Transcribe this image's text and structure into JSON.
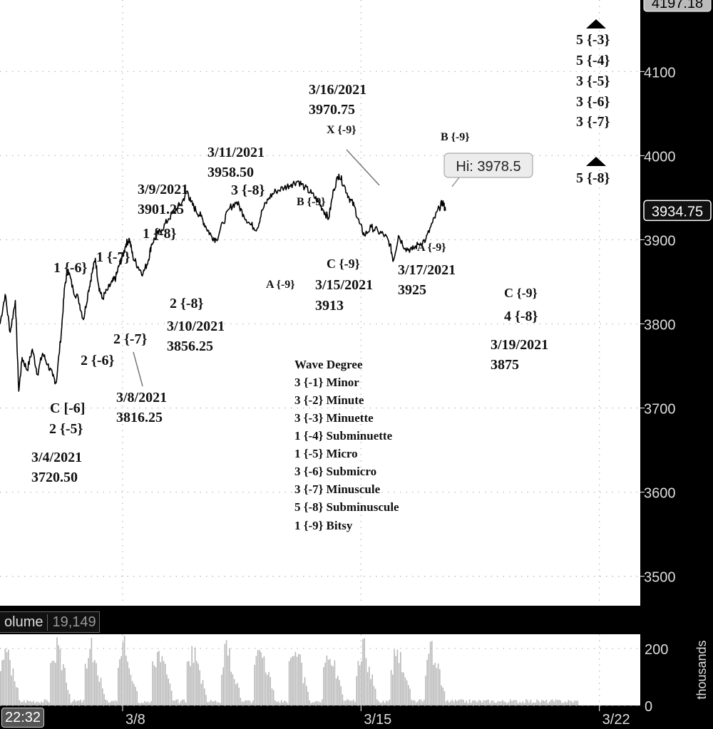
{
  "chart_data": {
    "type": "line",
    "price_axis": {
      "ylim": [
        3465,
        4185
      ],
      "ticks": [
        3500,
        3600,
        3700,
        3800,
        3900,
        4000,
        4100
      ],
      "top_label": "4197.18"
    },
    "last_price": 3934.75,
    "high_bubble": {
      "label": "Hi: 3978.5",
      "x": 16.7,
      "y": 3978.5
    },
    "time_axis": {
      "xlim": [
        4.4,
        23.2
      ],
      "ticks": [
        {
          "x": 8,
          "label": "3/8"
        },
        {
          "x": 15,
          "label": "3/15"
        },
        {
          "x": 22,
          "label": "3/22"
        }
      ]
    },
    "series": [
      {
        "values": [
          [
            4.4,
            3800
          ],
          [
            4.55,
            3835
          ],
          [
            4.7,
            3790
          ],
          [
            4.85,
            3828
          ],
          [
            4.95,
            3720
          ],
          [
            5.05,
            3760
          ],
          [
            5.2,
            3745
          ],
          [
            5.35,
            3770
          ],
          [
            5.5,
            3740
          ],
          [
            5.65,
            3765
          ],
          [
            5.8,
            3752
          ],
          [
            5.95,
            3738
          ],
          [
            6.05,
            3730
          ],
          [
            6.2,
            3790
          ],
          [
            6.3,
            3845
          ],
          [
            6.4,
            3865
          ],
          [
            6.55,
            3840
          ],
          [
            6.7,
            3830
          ],
          [
            6.85,
            3805
          ],
          [
            7.0,
            3840
          ],
          [
            7.1,
            3860
          ],
          [
            7.2,
            3878
          ],
          [
            7.3,
            3845
          ],
          [
            7.4,
            3830
          ],
          [
            7.55,
            3840
          ],
          [
            7.7,
            3850
          ],
          [
            7.8,
            3855
          ],
          [
            7.9,
            3870
          ],
          [
            8.0,
            3880
          ],
          [
            8.1,
            3895
          ],
          [
            8.2,
            3901
          ],
          [
            8.3,
            3880
          ],
          [
            8.45,
            3868
          ],
          [
            8.6,
            3860
          ],
          [
            8.75,
            3875
          ],
          [
            8.85,
            3895
          ],
          [
            9.0,
            3905
          ],
          [
            9.15,
            3912
          ],
          [
            9.35,
            3925
          ],
          [
            9.55,
            3935
          ],
          [
            9.75,
            3945
          ],
          [
            9.9,
            3958
          ],
          [
            10.0,
            3945
          ],
          [
            10.15,
            3935
          ],
          [
            10.3,
            3928
          ],
          [
            10.45,
            3915
          ],
          [
            10.6,
            3905
          ],
          [
            10.75,
            3900
          ],
          [
            10.95,
            3920
          ],
          [
            11.15,
            3938
          ],
          [
            11.35,
            3945
          ],
          [
            11.55,
            3930
          ],
          [
            11.75,
            3918
          ],
          [
            11.95,
            3913
          ],
          [
            12.1,
            3935
          ],
          [
            12.3,
            3950
          ],
          [
            12.5,
            3958
          ],
          [
            12.75,
            3962
          ],
          [
            12.95,
            3966
          ],
          [
            13.15,
            3970
          ],
          [
            13.35,
            3962
          ],
          [
            13.55,
            3955
          ],
          [
            13.75,
            3945
          ],
          [
            13.9,
            3935
          ],
          [
            14.05,
            3925
          ],
          [
            14.2,
            3960
          ],
          [
            14.35,
            3978
          ],
          [
            14.5,
            3965
          ],
          [
            14.65,
            3950
          ],
          [
            14.8,
            3940
          ],
          [
            14.95,
            3920
          ],
          [
            15.1,
            3905
          ],
          [
            15.3,
            3915
          ],
          [
            15.5,
            3910
          ],
          [
            15.7,
            3905
          ],
          [
            15.85,
            3895
          ],
          [
            15.95,
            3875
          ],
          [
            16.1,
            3905
          ],
          [
            16.3,
            3890
          ],
          [
            16.5,
            3888
          ],
          [
            16.7,
            3895
          ],
          [
            16.9,
            3900
          ],
          [
            17.1,
            3920
          ],
          [
            17.3,
            3938
          ],
          [
            17.4,
            3945
          ],
          [
            17.48,
            3934.75
          ]
        ]
      }
    ],
    "volume": {
      "ylim": [
        0,
        250
      ],
      "ticks": [
        {
          "y": 200,
          "label": "200"
        },
        {
          "y": 0,
          "label": "0"
        }
      ],
      "axis_label": "thousands"
    }
  },
  "annotations": {
    "a01": "C [-6]",
    "a02": "2 {-5}",
    "a03": "3/4/2021",
    "a04": "3720.50",
    "a05": "1 {-6}",
    "a06": "1 {-7}",
    "a07": "2 {-6}",
    "a08": "2 {-7}",
    "a09": "3/8/2021",
    "a10": "3816.25",
    "a11": "3/9/2021",
    "a12": "3901.25",
    "a13": "1 {-8}",
    "a14": "2 {-8}",
    "a15": "3/10/2021",
    "a16": "3856.25",
    "a17": "3/11/2021",
    "a18": "3958.50",
    "a19": "3 {-8}",
    "a20": "A {-9}",
    "a21": "B {-9}",
    "a22": "C {-9}",
    "a23": "3/15/2021",
    "a24": "3913",
    "a25": "3/16/2021",
    "a26": "3970.75",
    "a27": "X {-9}",
    "a28": "B {-9}",
    "a29": "A {-9}",
    "a30": "3/17/2021",
    "a31": "3925",
    "a32": "C {-9}",
    "a33": "4 {-8}",
    "a34": "3/19/2021",
    "a35": "3875",
    "a36": "5 {-3}",
    "a37": "5 {-4}",
    "a38": "3 {-5}",
    "a39": "3 {-6}",
    "a40": "3 {-7}",
    "a41": "5 {-8}"
  },
  "wave_degree": {
    "title": "Wave Degree",
    "items": [
      "3 {-1} Minor",
      "3 {-2} Minute",
      "3 {-3} Minuette",
      "1 {-4} Subminuette",
      "1 {-5} Micro",
      "3 {-6} Submicro",
      "3 {-7} Minuscule",
      "5 {-8} Subminuscule",
      "1 {-9} Bitsy"
    ]
  },
  "volume_panel": {
    "label": "olume",
    "value": "19,149"
  },
  "time_badge": "22:32",
  "colors": {
    "price_line": "#000000",
    "volume_bar": "#b8b8b8",
    "grid": "#bbbbbb",
    "background": "#ffffff",
    "axis_bg": "#000000"
  }
}
